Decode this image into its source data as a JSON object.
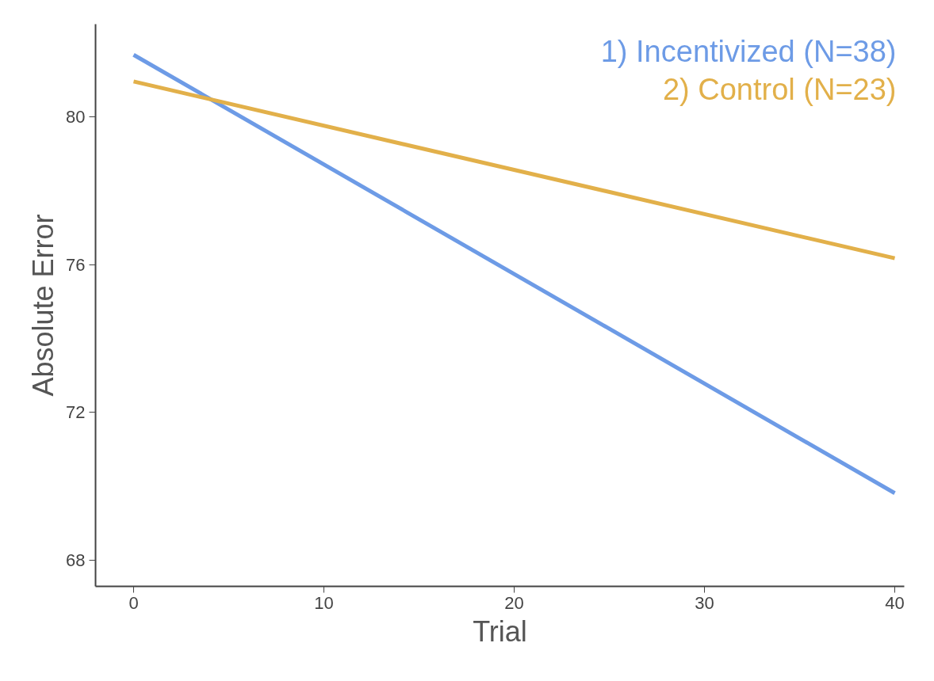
{
  "chart_data": {
    "type": "line",
    "xlabel": "Trial",
    "ylabel": "Absolute Error",
    "xlim": [
      -2,
      40.5
    ],
    "ylim": [
      67.3,
      82.5
    ],
    "xticks": [
      0,
      10,
      20,
      30,
      40
    ],
    "yticks": [
      68,
      72,
      76,
      80
    ],
    "grid": false,
    "legend": "top right",
    "line_style": "solid",
    "marker": "none",
    "x": [
      0,
      40
    ],
    "series": [
      {
        "name": "1) Incentivized (N=38)",
        "color": "#6d9be6",
        "values": [
          81.67,
          69.82
        ]
      },
      {
        "name": "2) Control (N=23)",
        "color": "#e2b04a",
        "values": [
          80.95,
          76.17
        ]
      }
    ]
  }
}
